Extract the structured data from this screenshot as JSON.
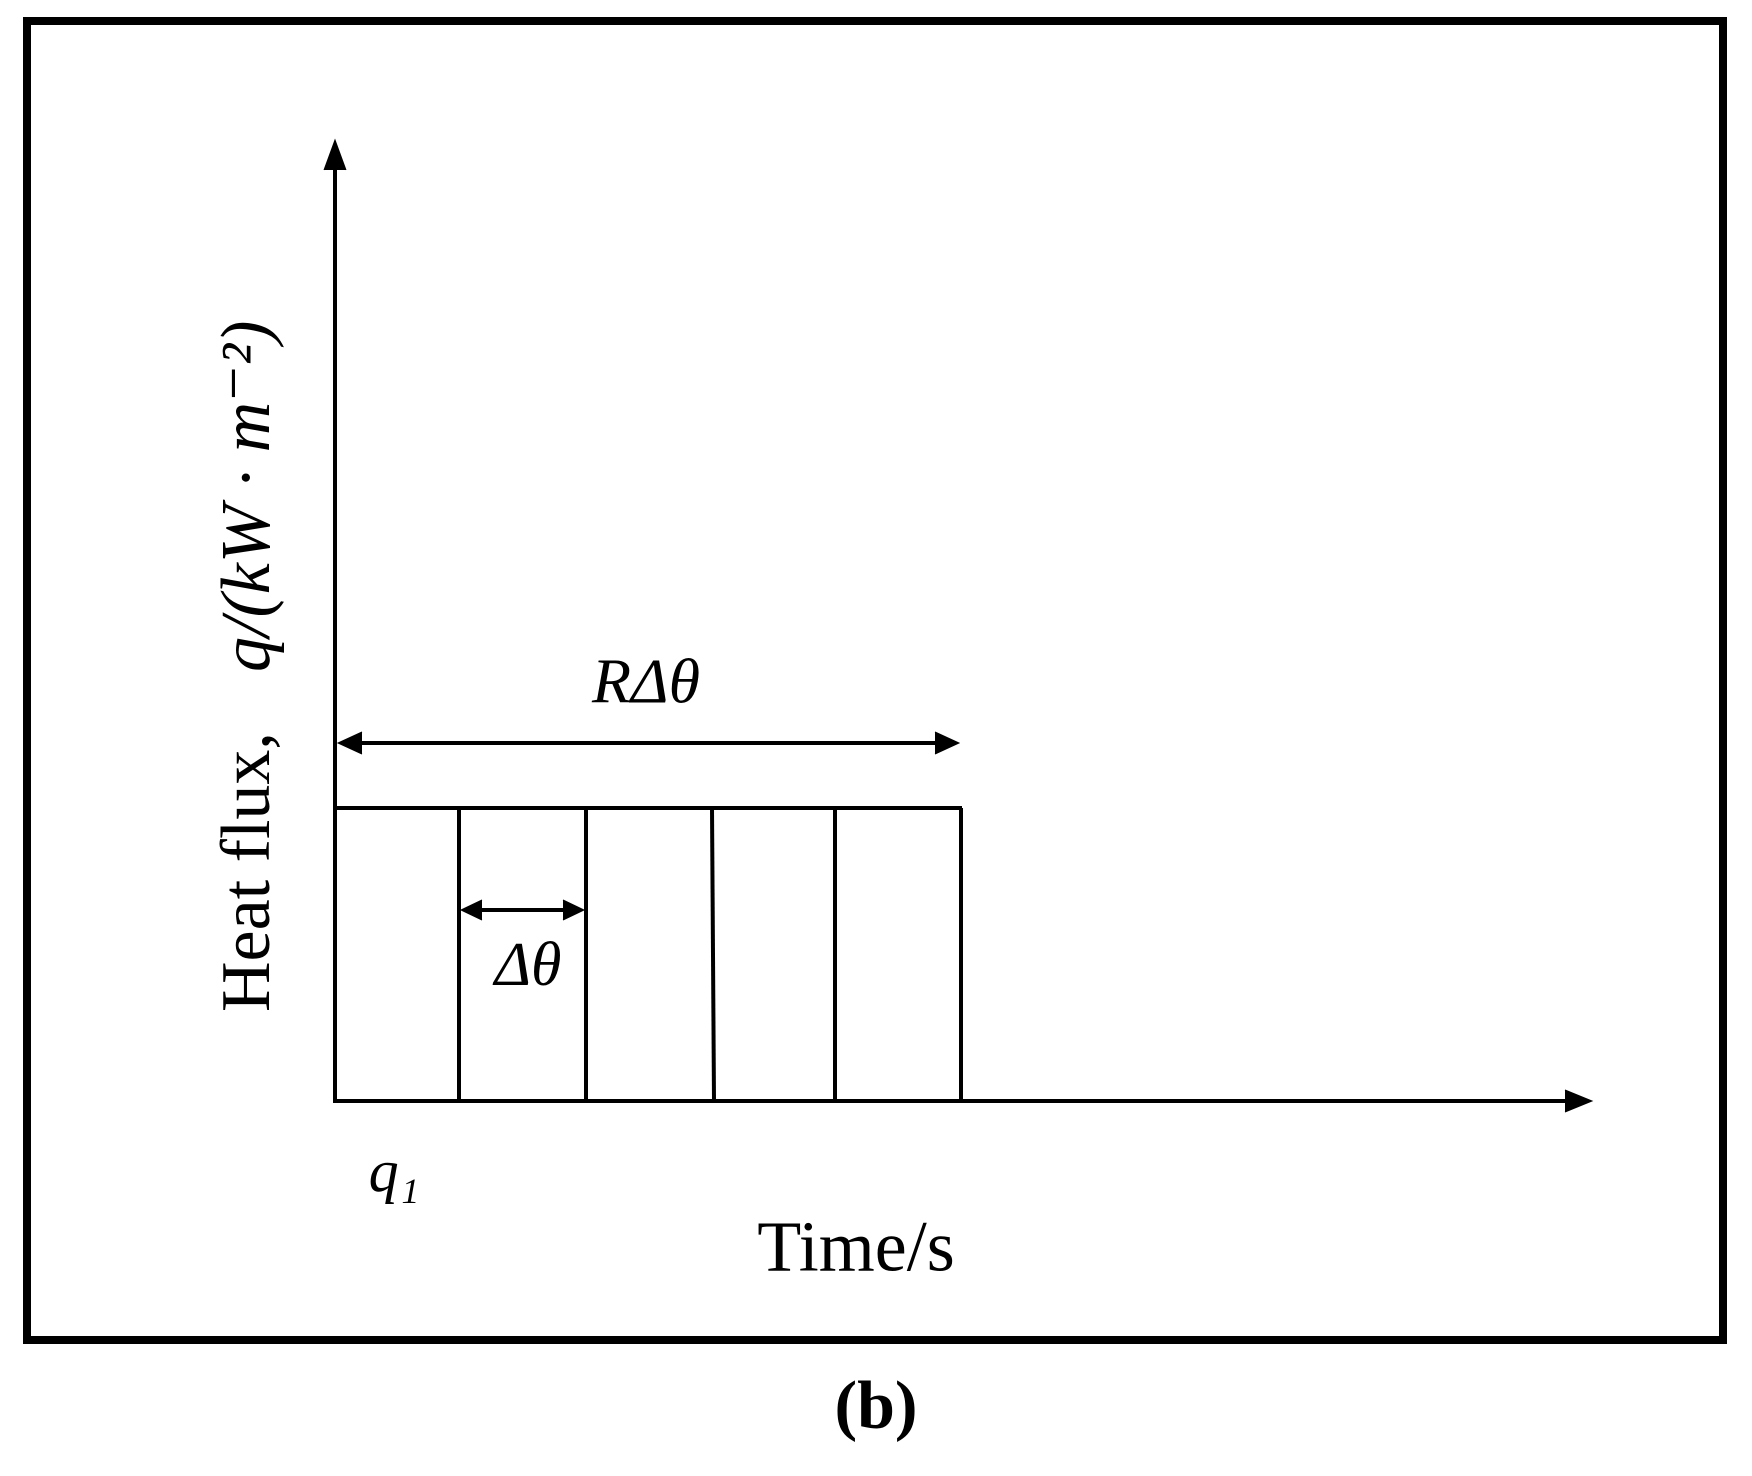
{
  "axes": {
    "y_label": "Heat flux,",
    "y_label_math": "q/(kW · m⁻²)",
    "x_label": "Time/s"
  },
  "annotations": {
    "span": "RΔθ",
    "step": "Δθ",
    "first_flux": "q₁"
  },
  "caption": "(b)"
}
